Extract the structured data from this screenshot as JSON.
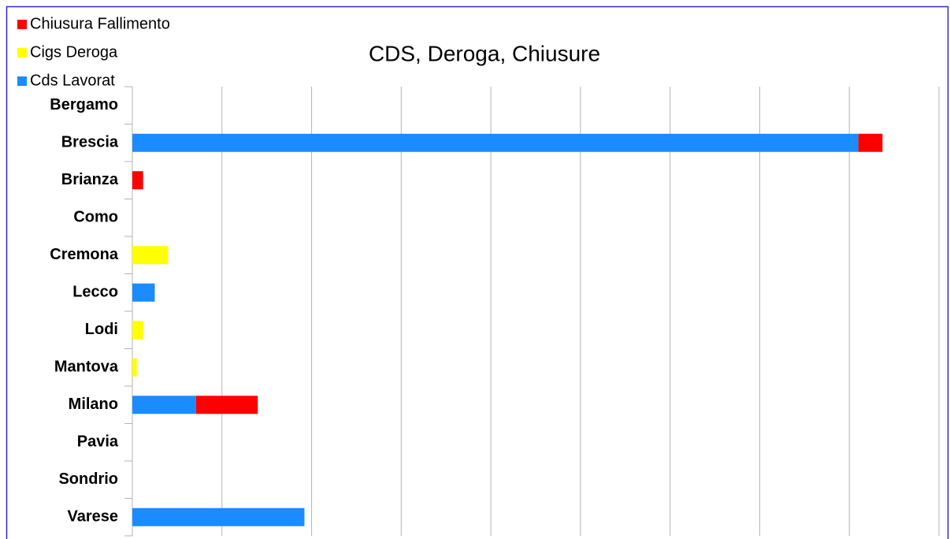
{
  "chart_data": {
    "type": "stacked_barh",
    "title": "CDS, Deroga, Chiusure",
    "categories": [
      "Bergamo",
      "Brescia",
      "Brianza",
      "Como",
      "Cremona",
      "Lecco",
      "Lodi",
      "Mantova",
      "Milano",
      "Pavia",
      "Sondrio",
      "Varese"
    ],
    "series": [
      {
        "name": "Cds Lavorat",
        "color": "#1a8cff",
        "values": [
          0,
          8.1,
          0,
          0,
          0,
          0.25,
          0,
          0,
          0.71,
          0,
          0,
          1.92
        ]
      },
      {
        "name": "Cigs Deroga",
        "color": "#ffff00",
        "values": [
          0,
          0,
          0,
          0,
          0.4,
          0,
          0.12,
          0.05,
          0,
          0,
          0,
          0
        ]
      },
      {
        "name": "Chiusura Fallimento",
        "color": "#ff0000",
        "values": [
          0,
          0.27,
          0.12,
          0,
          0,
          0,
          0,
          0,
          0.69,
          0,
          0,
          0
        ]
      }
    ],
    "xlim": [
      0,
      9
    ],
    "xticks": [
      0,
      1,
      2,
      3,
      4,
      5,
      6,
      7,
      8,
      9
    ],
    "grid": true
  }
}
